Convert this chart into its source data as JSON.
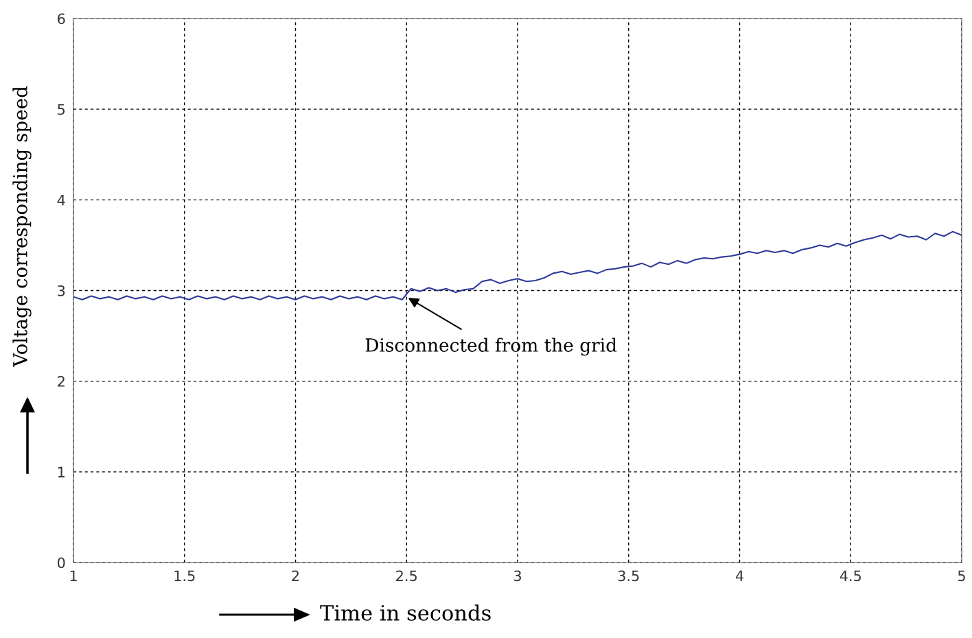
{
  "chart_data": {
    "type": "line",
    "xlabel": "Time in seconds",
    "ylabel": "Voltage corresponding speed",
    "x": [
      1.0,
      1.04,
      1.08,
      1.12,
      1.16,
      1.2,
      1.24,
      1.28,
      1.32,
      1.36,
      1.4,
      1.44,
      1.48,
      1.52,
      1.56,
      1.6,
      1.64,
      1.68,
      1.72,
      1.76,
      1.8,
      1.84,
      1.88,
      1.92,
      1.96,
      2.0,
      2.04,
      2.08,
      2.12,
      2.16,
      2.2,
      2.24,
      2.28,
      2.32,
      2.36,
      2.4,
      2.44,
      2.48,
      2.52,
      2.56,
      2.6,
      2.64,
      2.68,
      2.72,
      2.76,
      2.8,
      2.84,
      2.88,
      2.92,
      2.96,
      3.0,
      3.04,
      3.08,
      3.12,
      3.16,
      3.2,
      3.24,
      3.28,
      3.32,
      3.36,
      3.4,
      3.44,
      3.48,
      3.52,
      3.56,
      3.6,
      3.64,
      3.68,
      3.72,
      3.76,
      3.8,
      3.84,
      3.88,
      3.92,
      3.96,
      4.0,
      4.04,
      4.08,
      4.12,
      4.16,
      4.2,
      4.24,
      4.28,
      4.32,
      4.36,
      4.4,
      4.44,
      4.48,
      4.52,
      4.56,
      4.6,
      4.64,
      4.68,
      4.72,
      4.76,
      4.8,
      4.84,
      4.88,
      4.92,
      4.96,
      5.0
    ],
    "series": [
      {
        "color": "#2e3a9a",
        "values": [
          2.93,
          2.9,
          2.94,
          2.91,
          2.93,
          2.9,
          2.94,
          2.91,
          2.93,
          2.9,
          2.94,
          2.91,
          2.93,
          2.9,
          2.94,
          2.91,
          2.93,
          2.9,
          2.94,
          2.91,
          2.93,
          2.9,
          2.94,
          2.91,
          2.93,
          2.9,
          2.94,
          2.91,
          2.93,
          2.9,
          2.94,
          2.91,
          2.93,
          2.9,
          2.94,
          2.91,
          2.93,
          2.9,
          3.02,
          2.99,
          3.03,
          3.0,
          3.02,
          2.98,
          3.01,
          3.02,
          3.1,
          3.12,
          3.08,
          3.11,
          3.13,
          3.1,
          3.11,
          3.14,
          3.19,
          3.21,
          3.18,
          3.2,
          3.22,
          3.19,
          3.23,
          3.24,
          3.26,
          3.27,
          3.3,
          3.26,
          3.31,
          3.29,
          3.33,
          3.3,
          3.34,
          3.36,
          3.35,
          3.37,
          3.38,
          3.4,
          3.43,
          3.41,
          3.44,
          3.42,
          3.44,
          3.41,
          3.45,
          3.47,
          3.5,
          3.48,
          3.52,
          3.49,
          3.53,
          3.56,
          3.58,
          3.61,
          3.57,
          3.62,
          3.59,
          3.6,
          3.56,
          3.63,
          3.6,
          3.65,
          3.61
        ]
      }
    ],
    "xlim": [
      1,
      5
    ],
    "xticks": [
      1,
      1.5,
      2,
      2.5,
      3,
      3.5,
      4,
      4.5,
      5
    ],
    "ylim": [
      0,
      6
    ],
    "yticks": [
      0,
      1,
      2,
      3,
      4,
      5,
      6
    ],
    "grid": true,
    "line_style": "solid",
    "marker": "none",
    "annotations": [
      {
        "text": "Disconnected from the grid",
        "x": 2.5,
        "y": 2.93
      }
    ]
  }
}
